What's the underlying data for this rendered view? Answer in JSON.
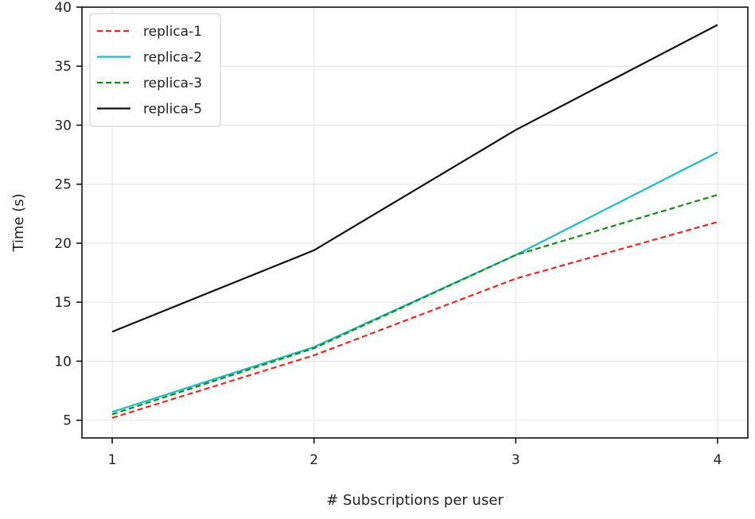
{
  "chart_data": {
    "type": "line",
    "title": "",
    "xlabel": "# Subscriptions per user",
    "ylabel": "Time (s)",
    "x": [
      1,
      2,
      3,
      4
    ],
    "xticks": [
      "1",
      "2",
      "3",
      "4"
    ],
    "yticks": [
      "5",
      "10",
      "15",
      "20",
      "25",
      "30",
      "35",
      "40"
    ],
    "xlim": [
      0.85,
      4.15
    ],
    "ylim": [
      3.5,
      40
    ],
    "grid": true,
    "legend_position": "top-left",
    "series": [
      {
        "name": "replica-1",
        "color": "#ff2020",
        "dash": "dashed",
        "values": [
          5.2,
          10.5,
          17.0,
          21.8
        ]
      },
      {
        "name": "replica-2",
        "color": "#17becf",
        "dash": "solid",
        "values": [
          5.7,
          11.2,
          19.0,
          27.7
        ]
      },
      {
        "name": "replica-3",
        "color": "#109010",
        "dash": "dashed",
        "values": [
          5.5,
          11.1,
          19.0,
          24.1
        ]
      },
      {
        "name": "replica-5",
        "color": "#111111",
        "dash": "solid",
        "values": [
          12.5,
          19.4,
          29.6,
          38.5
        ]
      }
    ]
  }
}
